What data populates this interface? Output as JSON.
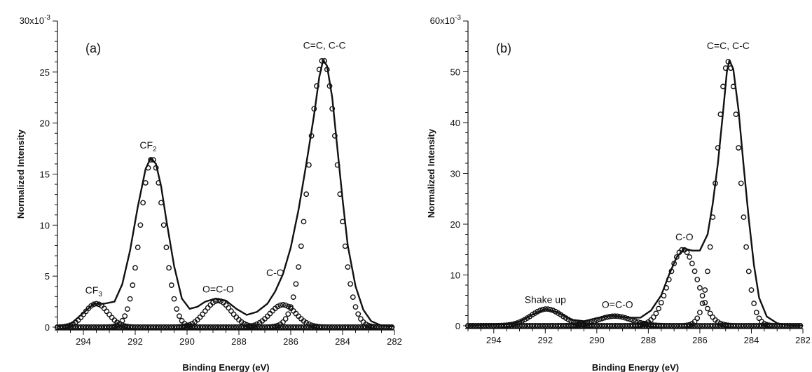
{
  "chart_data": [
    {
      "type": "line",
      "panel_label": "(a)",
      "xlabel": "Binding Energy (eV)",
      "ylabel": "Normalized Intensity",
      "x_reversed": true,
      "xlim": [
        295,
        282
      ],
      "ylim": [
        0,
        30
      ],
      "y_multiplier_label": "30x10",
      "y_multiplier_exp": "-3",
      "x_ticks": [
        294,
        292,
        290,
        288,
        286,
        284,
        282
      ],
      "y_ticks": [
        0,
        5,
        10,
        15,
        20,
        25
      ],
      "envelope": [
        [
          295,
          0.05
        ],
        [
          294.5,
          0.3
        ],
        [
          294,
          1.4
        ],
        [
          293.6,
          2.3
        ],
        [
          293.2,
          2.3
        ],
        [
          292.8,
          2.5
        ],
        [
          292.5,
          4.2
        ],
        [
          292.2,
          7.5
        ],
        [
          291.9,
          11.8
        ],
        [
          291.6,
          15.5
        ],
        [
          291.4,
          16.6
        ],
        [
          291.2,
          16.0
        ],
        [
          291.0,
          13.8
        ],
        [
          290.8,
          10.5
        ],
        [
          290.5,
          6.0
        ],
        [
          290.2,
          2.8
        ],
        [
          289.9,
          1.8
        ],
        [
          289.6,
          2.0
        ],
        [
          289.3,
          2.5
        ],
        [
          288.9,
          2.8
        ],
        [
          288.5,
          2.6
        ],
        [
          288.1,
          1.8
        ],
        [
          287.7,
          1.2
        ],
        [
          287.3,
          1.5
        ],
        [
          286.9,
          2.3
        ],
        [
          286.6,
          3.5
        ],
        [
          286.3,
          5.2
        ],
        [
          286.0,
          7.8
        ],
        [
          285.7,
          11.5
        ],
        [
          285.4,
          16.0
        ],
        [
          285.1,
          20.8
        ],
        [
          284.9,
          24.5
        ],
        [
          284.75,
          26.2
        ],
        [
          284.6,
          25.6
        ],
        [
          284.4,
          22.5
        ],
        [
          284.2,
          17.5
        ],
        [
          284.0,
          12.5
        ],
        [
          283.8,
          8.0
        ],
        [
          283.5,
          4.0
        ],
        [
          283.2,
          1.7
        ],
        [
          282.9,
          0.6
        ],
        [
          282.5,
          0.15
        ],
        [
          282,
          0.05
        ]
      ],
      "components": [
        {
          "label": "CF",
          "sub": "3",
          "center": 293.5,
          "height": 2.3,
          "sigma": 0.45,
          "label_x": 293.6,
          "label_y": 3.3
        },
        {
          "label": "CF",
          "sub": "2",
          "center": 291.35,
          "height": 16.5,
          "sigma": 0.45,
          "label_x": 291.5,
          "label_y": 17.5
        },
        {
          "label": "O=C-O",
          "sub": "",
          "center": 288.8,
          "height": 2.6,
          "sigma": 0.5,
          "label_x": 288.8,
          "label_y": 3.4
        },
        {
          "label": "C-O",
          "sub": "",
          "center": 286.3,
          "height": 2.2,
          "sigma": 0.5,
          "label_x": 286.6,
          "label_y": 5.0
        },
        {
          "label": "C=C, C-C",
          "sub": "",
          "center": 284.75,
          "height": 26.2,
          "sigma": 0.55,
          "label_x": 284.7,
          "label_y": 27.3
        }
      ]
    },
    {
      "type": "line",
      "panel_label": "(b)",
      "xlabel": "Binding Energy (eV)",
      "ylabel": "Normalized Intensity",
      "x_reversed": true,
      "xlim": [
        295,
        282
      ],
      "ylim": [
        0,
        60
      ],
      "y_multiplier_label": "60x10",
      "y_multiplier_exp": "-3",
      "x_ticks": [
        294,
        292,
        290,
        288,
        286,
        284,
        282
      ],
      "y_ticks": [
        0,
        10,
        20,
        30,
        40,
        50
      ],
      "envelope": [
        [
          295,
          0.1
        ],
        [
          293.5,
          0.3
        ],
        [
          293,
          0.8
        ],
        [
          292.5,
          2.2
        ],
        [
          292.0,
          3.3
        ],
        [
          291.5,
          2.6
        ],
        [
          291.0,
          1.2
        ],
        [
          290.5,
          0.9
        ],
        [
          290.0,
          1.5
        ],
        [
          289.4,
          2.0
        ],
        [
          288.8,
          1.6
        ],
        [
          288.3,
          1.6
        ],
        [
          287.9,
          3.0
        ],
        [
          287.5,
          6.0
        ],
        [
          287.2,
          10.0
        ],
        [
          286.9,
          13.5
        ],
        [
          286.6,
          15.2
        ],
        [
          286.3,
          14.8
        ],
        [
          286.0,
          14.8
        ],
        [
          285.7,
          18.0
        ],
        [
          285.5,
          24.0
        ],
        [
          285.3,
          32.0
        ],
        [
          285.1,
          42.0
        ],
        [
          284.95,
          50.0
        ],
        [
          284.85,
          52.3
        ],
        [
          284.7,
          50.5
        ],
        [
          284.5,
          42.5
        ],
        [
          284.3,
          31.5
        ],
        [
          284.1,
          21.0
        ],
        [
          283.9,
          12.0
        ],
        [
          283.7,
          5.5
        ],
        [
          283.4,
          1.8
        ],
        [
          283.0,
          0.5
        ],
        [
          282.5,
          0.1
        ],
        [
          282,
          0.05
        ]
      ],
      "components": [
        {
          "label": "Shake up",
          "sub": "",
          "center": 291.95,
          "height": 3.3,
          "sigma": 0.6,
          "label_x": 292.0,
          "label_y": 4.5
        },
        {
          "label": "O=C-O",
          "sub": "",
          "center": 289.3,
          "height": 1.9,
          "sigma": 0.65,
          "label_x": 289.2,
          "label_y": 3.5
        },
        {
          "label": "C-O",
          "sub": "",
          "center": 286.65,
          "height": 15.0,
          "sigma": 0.55,
          "label_x": 286.6,
          "label_y": 16.8
        },
        {
          "label": "C=C, C-C",
          "sub": "",
          "center": 284.9,
          "height": 52.0,
          "sigma": 0.45,
          "label_x": 284.9,
          "label_y": 54.5
        }
      ]
    }
  ]
}
